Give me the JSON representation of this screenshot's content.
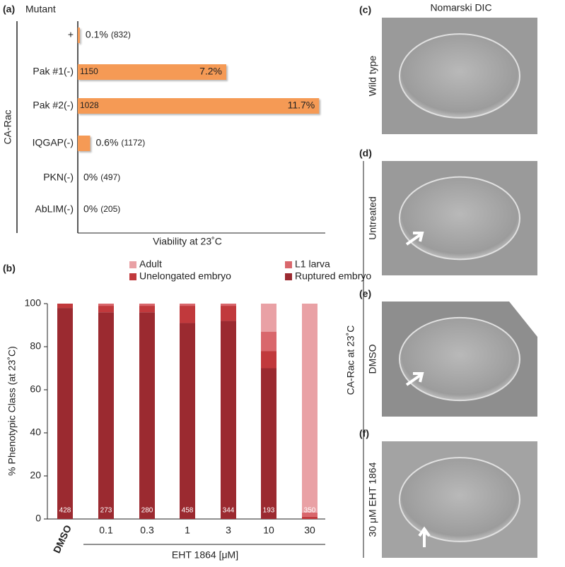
{
  "chart_data": [
    {
      "type": "hbar",
      "panel": "(a)",
      "header": "Mutant",
      "group_label": "CA-Rac",
      "categories": [
        "+",
        "Pak #1(-)",
        "Pak #2(-)",
        "IQGAP(-)",
        "PKN(-)",
        "AbLIM(-)"
      ],
      "values": [
        0.1,
        7.2,
        11.7,
        0.6,
        0,
        0
      ],
      "value_labels": [
        "0.1%",
        "7.2%",
        "11.7%",
        "0.6%",
        "0%",
        "0%"
      ],
      "count_labels": [
        "(832)",
        "1150",
        "1028",
        "(1172)",
        "(497)",
        "(205)"
      ],
      "color": "#f59a55",
      "xlim": [
        0,
        12
      ],
      "xlabel": "Viability at 23˚C"
    },
    {
      "type": "stacked-bar",
      "panel": "(b)",
      "categories": [
        "DMSO",
        "0.1",
        "0.3",
        "1",
        "3",
        "10",
        "30"
      ],
      "series": [
        {
          "name": "Ruptured embryo",
          "color": "#9b2a30",
          "values": [
            98,
            96,
            96,
            91,
            92,
            70,
            0
          ]
        },
        {
          "name": "Unelongated embryo",
          "color": "#c1393c",
          "values": [
            2,
            3,
            3,
            8,
            7,
            8,
            1
          ]
        },
        {
          "name": "L1 larva",
          "color": "#d9676c",
          "values": [
            0,
            1,
            1,
            1,
            1,
            9,
            2
          ]
        },
        {
          "name": "Adult",
          "color": "#e9a1a5",
          "values": [
            0,
            0,
            0,
            0,
            0,
            13,
            97
          ]
        }
      ],
      "n": [
        428,
        273,
        280,
        458,
        344,
        193,
        350
      ],
      "ylim": [
        0,
        100
      ],
      "yticks": [
        0,
        20,
        40,
        60,
        80,
        100
      ],
      "ylabel": "% Phenotypic Class (at 23˚C)",
      "xlabel": "EHT 1864 [μM]"
    }
  ],
  "micrographs": {
    "title": "Nomarski DIC",
    "group_label": "CA-Rac at 23˚C",
    "panels": [
      {
        "panel": "(c)",
        "label": "Wild type"
      },
      {
        "panel": "(d)",
        "label": "Untreated"
      },
      {
        "panel": "(e)",
        "label": "DMSO"
      },
      {
        "panel": "(f)",
        "label": "30 μM EHT 1864"
      }
    ]
  }
}
